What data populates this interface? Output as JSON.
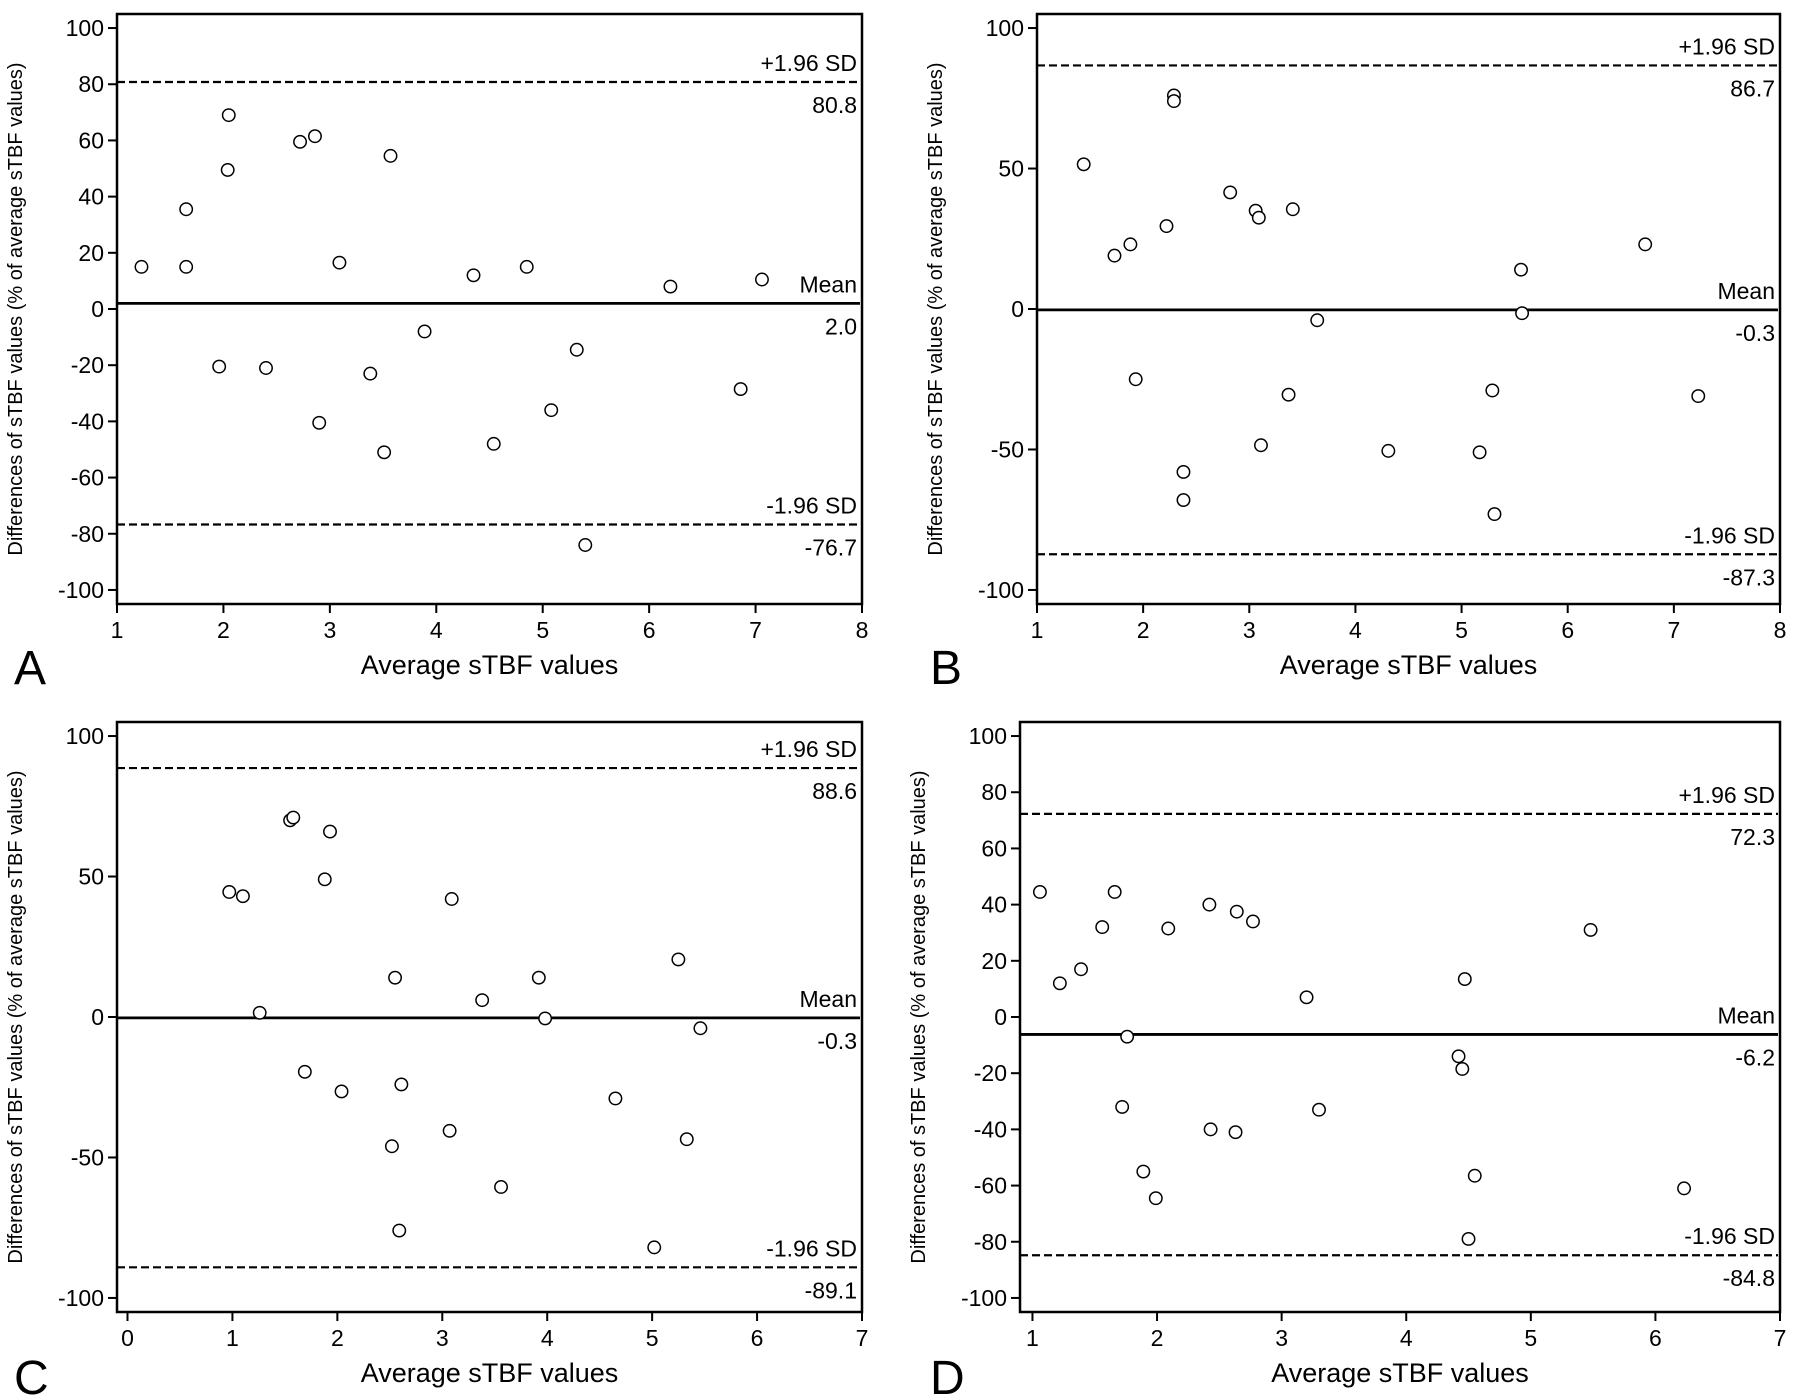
{
  "figure": {
    "background": "#ffffff",
    "ink": "#000000"
  },
  "chart_data": [
    {
      "type": "scatter",
      "panel": "A",
      "xlabel": "Average sTBF values",
      "ylabel": "Differences of sTBF values (% of average sTBF values)",
      "xlim": [
        1,
        8
      ],
      "ylim": [
        -105,
        105
      ],
      "xticks": [
        1,
        2,
        3,
        4,
        5,
        6,
        7,
        8
      ],
      "yticks": [
        -100,
        -80,
        -60,
        -40,
        -20,
        0,
        20,
        40,
        60,
        80,
        100
      ],
      "grid": false,
      "reference_lines": [
        {
          "name": "+1.96 SD",
          "value": 80.8,
          "value_label": "80.8",
          "style": "dashed"
        },
        {
          "name": "Mean",
          "value": 2.0,
          "value_label": "2.0",
          "style": "solid"
        },
        {
          "name": "-1.96 SD",
          "value": -76.7,
          "value_label": "-76.7",
          "style": "dashed"
        }
      ],
      "points": [
        [
          1.23,
          15
        ],
        [
          1.65,
          35.5
        ],
        [
          1.65,
          15
        ],
        [
          1.96,
          -20.5
        ],
        [
          2.05,
          69
        ],
        [
          2.04,
          49.5
        ],
        [
          2.4,
          -21
        ],
        [
          2.72,
          59.5
        ],
        [
          2.86,
          61.5
        ],
        [
          2.9,
          -40.5
        ],
        [
          3.09,
          16.5
        ],
        [
          3.38,
          -23
        ],
        [
          3.51,
          -51
        ],
        [
          3.57,
          54.5
        ],
        [
          3.89,
          -8
        ],
        [
          4.35,
          12
        ],
        [
          4.54,
          -48
        ],
        [
          4.85,
          15
        ],
        [
          5.08,
          -36
        ],
        [
          5.32,
          -14.5
        ],
        [
          5.4,
          -84
        ],
        [
          6.2,
          8
        ],
        [
          6.86,
          -28.5
        ],
        [
          7.06,
          10.5
        ]
      ]
    },
    {
      "type": "scatter",
      "panel": "B",
      "xlabel": "Average sTBF values",
      "ylabel": "Differences of sTBF values (% of average sTBF values)",
      "xlim": [
        1,
        8
      ],
      "ylim": [
        -105,
        105
      ],
      "xticks": [
        1,
        2,
        3,
        4,
        5,
        6,
        7,
        8
      ],
      "yticks": [
        -100,
        -50,
        0,
        50,
        100
      ],
      "grid": false,
      "reference_lines": [
        {
          "name": "+1.96 SD",
          "value": 86.7,
          "value_label": "86.7",
          "style": "dashed"
        },
        {
          "name": "Mean",
          "value": -0.3,
          "value_label": "-0.3",
          "style": "solid"
        },
        {
          "name": "-1.96 SD",
          "value": -87.3,
          "value_label": "-87.3",
          "style": "dashed"
        }
      ],
      "points": [
        [
          1.44,
          51.5
        ],
        [
          1.73,
          19
        ],
        [
          1.88,
          23
        ],
        [
          1.93,
          -25
        ],
        [
          2.22,
          29.5
        ],
        [
          2.29,
          76
        ],
        [
          2.29,
          74
        ],
        [
          2.38,
          -58
        ],
        [
          2.38,
          -68
        ],
        [
          2.82,
          41.5
        ],
        [
          3.06,
          35
        ],
        [
          3.09,
          32.5
        ],
        [
          3.11,
          -48.5
        ],
        [
          3.37,
          -30.5
        ],
        [
          3.41,
          35.5
        ],
        [
          3.64,
          -4
        ],
        [
          4.31,
          -50.5
        ],
        [
          5.17,
          -51
        ],
        [
          5.29,
          -29
        ],
        [
          5.31,
          -73
        ],
        [
          5.56,
          14
        ],
        [
          5.57,
          -1.5
        ],
        [
          6.73,
          23
        ],
        [
          7.23,
          -31
        ]
      ]
    },
    {
      "type": "scatter",
      "panel": "C",
      "xlabel": "Average sTBF values",
      "ylabel": "Differences of sTBF values (% of average sTBF values)",
      "xlim": [
        -0.1,
        7
      ],
      "ylim": [
        -105,
        105
      ],
      "xticks": [
        0,
        1,
        2,
        3,
        4,
        5,
        6,
        7
      ],
      "yticks": [
        -100,
        -50,
        0,
        50,
        100
      ],
      "grid": false,
      "reference_lines": [
        {
          "name": "+1.96 SD",
          "value": 88.6,
          "value_label": "88.6",
          "style": "dashed"
        },
        {
          "name": "Mean",
          "value": -0.3,
          "value_label": "-0.3",
          "style": "solid"
        },
        {
          "name": "-1.96 SD",
          "value": -89.1,
          "value_label": "-89.1",
          "style": "dashed"
        }
      ],
      "points": [
        [
          0.97,
          44.5
        ],
        [
          1.1,
          43
        ],
        [
          1.26,
          1.5
        ],
        [
          1.55,
          70
        ],
        [
          1.58,
          71
        ],
        [
          1.69,
          -19.5
        ],
        [
          1.88,
          49
        ],
        [
          1.93,
          66
        ],
        [
          2.04,
          -26.5
        ],
        [
          2.52,
          -46
        ],
        [
          2.55,
          14
        ],
        [
          2.59,
          -76
        ],
        [
          2.61,
          -24
        ],
        [
          3.07,
          -40.5
        ],
        [
          3.09,
          42
        ],
        [
          3.38,
          6
        ],
        [
          3.56,
          -60.5
        ],
        [
          3.92,
          14
        ],
        [
          3.98,
          -0.5
        ],
        [
          4.65,
          -29
        ],
        [
          5.02,
          -82
        ],
        [
          5.25,
          20.5
        ],
        [
          5.33,
          -43.5
        ],
        [
          5.46,
          -4
        ]
      ]
    },
    {
      "type": "scatter",
      "panel": "D",
      "xlabel": "Average sTBF values",
      "ylabel": "Differences of sTBF values (% of average sTBF values)",
      "xlim": [
        0.9,
        7
      ],
      "ylim": [
        -105,
        105
      ],
      "xticks": [
        1,
        2,
        3,
        4,
        5,
        6,
        7
      ],
      "yticks": [
        -100,
        -80,
        -60,
        -40,
        -20,
        0,
        20,
        40,
        60,
        80,
        100
      ],
      "grid": false,
      "reference_lines": [
        {
          "name": "+1.96 SD",
          "value": 72.3,
          "value_label": "72.3",
          "style": "dashed"
        },
        {
          "name": "Mean",
          "value": -6.2,
          "value_label": "-6.2",
          "style": "solid"
        },
        {
          "name": "-1.96 SD",
          "value": -84.8,
          "value_label": "-84.8",
          "style": "dashed"
        }
      ],
      "points": [
        [
          1.06,
          44.5
        ],
        [
          1.22,
          12
        ],
        [
          1.39,
          17
        ],
        [
          1.56,
          32
        ],
        [
          1.66,
          44.5
        ],
        [
          1.72,
          -32
        ],
        [
          1.76,
          -7
        ],
        [
          1.89,
          -55
        ],
        [
          1.99,
          -64.5
        ],
        [
          2.09,
          31.5
        ],
        [
          2.42,
          40
        ],
        [
          2.43,
          -40
        ],
        [
          2.63,
          -41
        ],
        [
          2.64,
          37.5
        ],
        [
          2.77,
          34
        ],
        [
          3.2,
          7
        ],
        [
          3.3,
          -33
        ],
        [
          4.42,
          -14
        ],
        [
          4.45,
          -18.5
        ],
        [
          4.47,
          13.5
        ],
        [
          4.5,
          -79
        ],
        [
          4.55,
          -56.5
        ],
        [
          5.48,
          31
        ],
        [
          6.23,
          -61
        ]
      ]
    }
  ]
}
